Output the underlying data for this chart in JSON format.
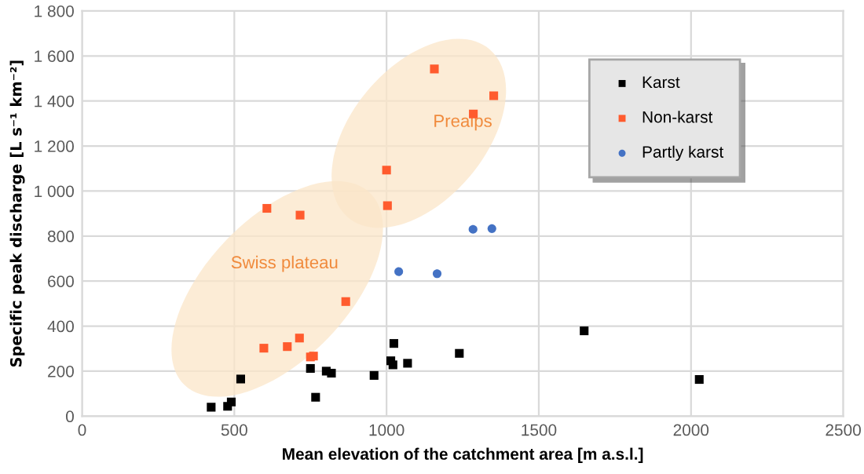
{
  "chart_data": {
    "type": "scatter",
    "xlabel": "Mean elevation of the catchment area [m a.s.l.]",
    "ylabel": "Specific peak discharge [L s⁻¹ km⁻²]",
    "series": [
      {
        "name": "Karst",
        "color": "#000000",
        "marker": "square",
        "x": [
          424,
          478,
          490,
          521,
          750,
          767,
          802,
          819,
          959,
          1014,
          1021,
          1024,
          1069,
          1239,
          1649,
          2027
        ],
        "values": [
          40,
          44,
          63,
          165,
          212,
          84,
          200,
          191,
          181,
          246,
          228,
          323,
          235,
          279,
          379,
          163
        ]
      },
      {
        "name": "Non-karst",
        "color": "#ff5b2e",
        "marker": "square",
        "x": [
          607,
          716,
          597,
          674,
          714,
          750,
          760,
          866,
          1000,
          1003,
          1157,
          1352,
          1285
        ],
        "values": [
          923,
          893,
          302,
          309,
          347,
          263,
          267,
          509,
          1093,
          935,
          1542,
          1423,
          1342
        ]
      },
      {
        "name": "Partly karst",
        "color": "#4472c4",
        "marker": "circle",
        "x": [
          1040,
          1166,
          1284,
          1346
        ],
        "values": [
          642,
          633,
          830,
          833
        ]
      }
    ],
    "annotations": [
      "Swiss plateau",
      "Prealps"
    ],
    "xlim": [
      0,
      2500
    ],
    "xticks": [
      0,
      500,
      1000,
      1500,
      2000,
      2500
    ],
    "ylim": [
      0,
      1800
    ],
    "yticks": [
      0,
      200,
      400,
      600,
      800,
      {
        "value": 1000,
        "label": "1 000"
      },
      {
        "value": 1200,
        "label": "1 200"
      },
      {
        "value": 1400,
        "label": "1 400"
      },
      {
        "value": 1600,
        "label": "1 600"
      },
      {
        "value": 1800,
        "label": "1 800"
      }
    ],
    "grid": true,
    "legend": "top right"
  }
}
